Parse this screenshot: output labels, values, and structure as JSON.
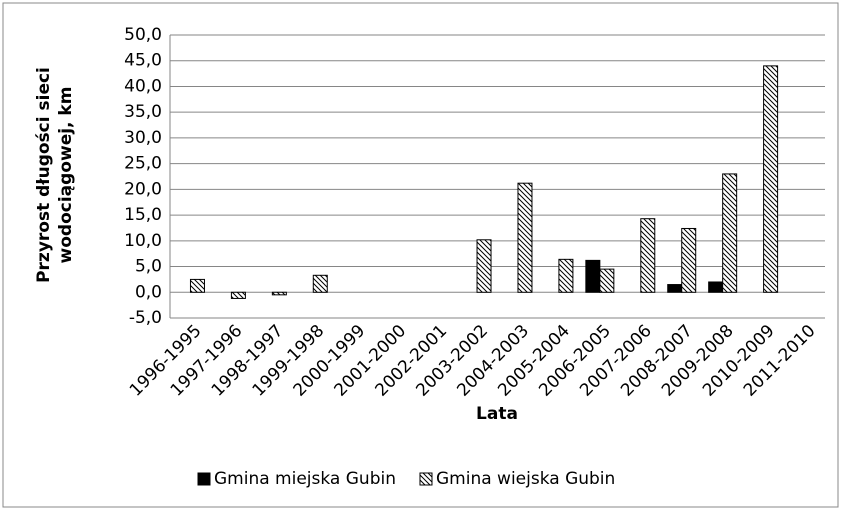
{
  "chart_data": {
    "type": "bar",
    "y_label": "Przyrost długości sieci wodociągowej, km",
    "x_label": "Lata",
    "categories": [
      "1996-1995",
      "1997-1996",
      "1998-1997",
      "1999-1998",
      "2000-1999",
      "2001-2000",
      "2002-2001",
      "2003-2002",
      "2004-2003",
      "2005-2004",
      "2006-2005",
      "2007-2006",
      "2008-2007",
      "2009-2008",
      "2010-2009",
      "2011-2010"
    ],
    "series": [
      {
        "name": "Gmina miejska Gubin",
        "color": "#000000",
        "fill": "solid",
        "values": [
          0,
          0,
          0,
          0,
          0,
          0,
          0,
          0,
          0,
          0,
          6.2,
          0,
          1.5,
          2.0,
          0,
          0
        ]
      },
      {
        "name": "Gmina wiejska Gubin",
        "color": "#000000",
        "fill": "hatch",
        "values": [
          2.5,
          -1.2,
          -0.5,
          3.3,
          0,
          0,
          0,
          10.2,
          21.2,
          6.4,
          4.5,
          14.3,
          12.4,
          23.0,
          44.0,
          0
        ]
      }
    ],
    "ylim": [
      -5,
      50
    ],
    "yticks": [
      {
        "value": -5,
        "label": "-5,0"
      },
      {
        "value": 0,
        "label": "0,0"
      },
      {
        "value": 5,
        "label": "5,0"
      },
      {
        "value": 10,
        "label": "10,0"
      },
      {
        "value": 15,
        "label": "15,0"
      },
      {
        "value": 20,
        "label": "20,0"
      },
      {
        "value": 25,
        "label": "25,0"
      },
      {
        "value": 30,
        "label": "30,0"
      },
      {
        "value": 35,
        "label": "35,0"
      },
      {
        "value": 40,
        "label": "40,0"
      },
      {
        "value": 45,
        "label": "45,0"
      },
      {
        "value": 50,
        "label": "50,0"
      }
    ],
    "grid": true,
    "legend": "bottom"
  }
}
